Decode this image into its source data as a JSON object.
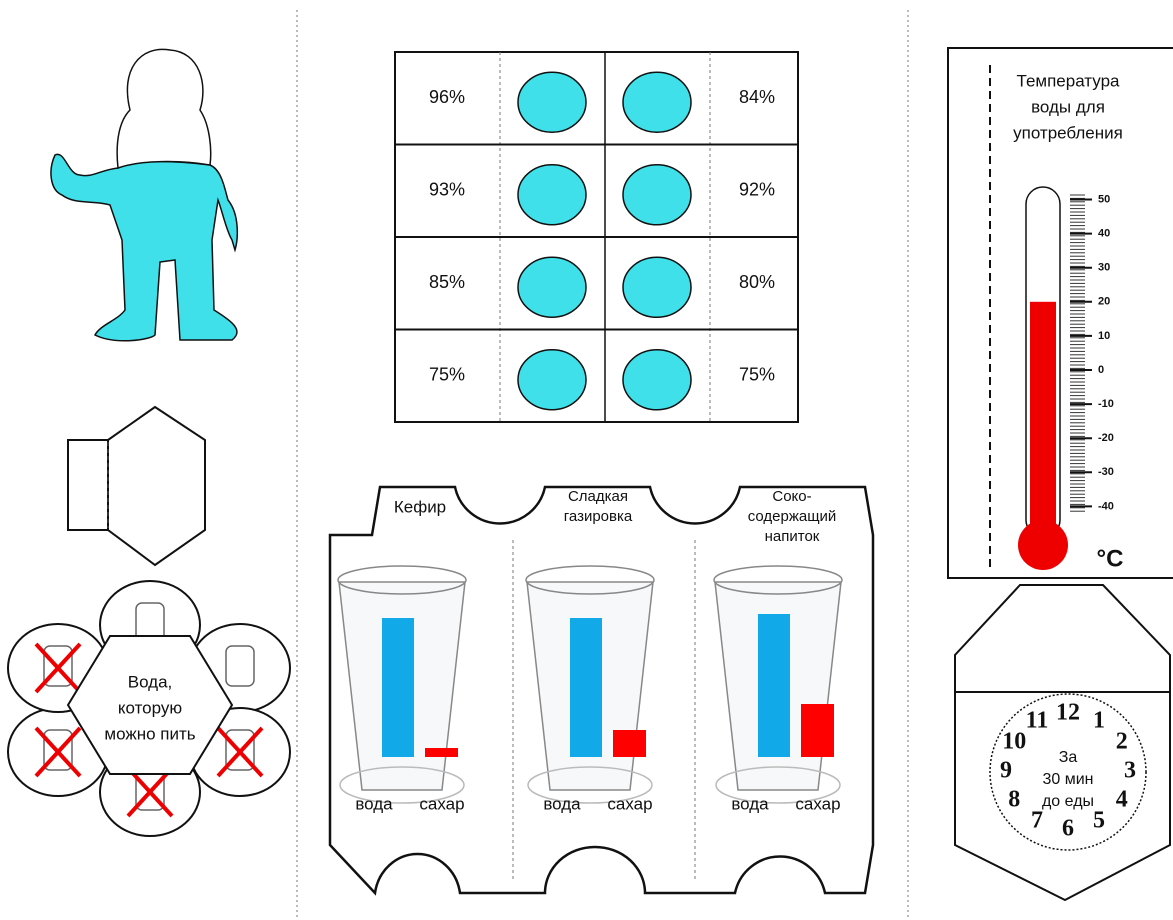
{
  "food_table": {
    "rows": [
      [
        "96%",
        "84%"
      ],
      [
        "93%",
        "92%"
      ],
      [
        "85%",
        "80%"
      ],
      [
        "75%",
        "75%"
      ]
    ]
  },
  "water_hexagon": {
    "lines": [
      "Вода,",
      "которую",
      "можно пить"
    ]
  },
  "drinks": [
    {
      "name": [
        "Кефир"
      ],
      "water": "вода",
      "sugar": "сахар"
    },
    {
      "name": [
        "Сладкая",
        "газировка"
      ],
      "water": "вода",
      "sugar": "сахар"
    },
    {
      "name": [
        "Соко-",
        "содержащий",
        "напиток"
      ],
      "water": "вода",
      "sugar": "сахар"
    }
  ],
  "thermometer": {
    "title": [
      "Температура",
      "воды для",
      "употребления"
    ],
    "ticks": [
      50,
      40,
      30,
      20,
      10,
      0,
      -10,
      -20,
      -30,
      -40
    ],
    "unit": "°C",
    "level": 20
  },
  "clock": {
    "numbers": [
      "12",
      "1",
      "2",
      "3",
      "4",
      "5",
      "6",
      "7",
      "8",
      "9",
      "10",
      "11"
    ],
    "text": [
      "За",
      "30 мин",
      "до еды"
    ]
  }
}
